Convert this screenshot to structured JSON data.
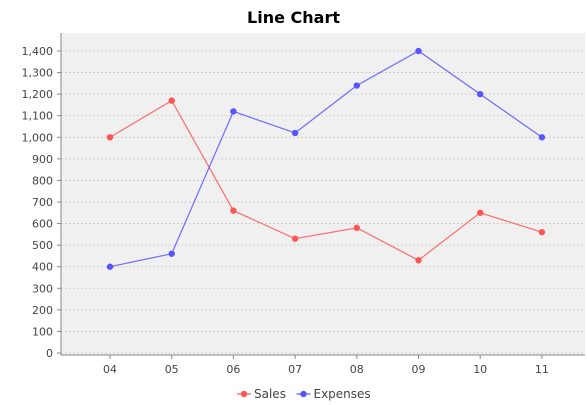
{
  "chart_data": {
    "type": "line",
    "title": "Line Chart",
    "xlabel": "",
    "ylabel": "",
    "categories": [
      "04",
      "05",
      "06",
      "07",
      "08",
      "09",
      "10",
      "11"
    ],
    "ylim": [
      0,
      1400
    ],
    "yticks": [
      0,
      100,
      200,
      300,
      400,
      500,
      600,
      700,
      800,
      900,
      1000,
      1100,
      1200,
      1300,
      1400
    ],
    "ytick_labels": [
      "0",
      "100",
      "200",
      "300",
      "400",
      "500",
      "600",
      "700",
      "800",
      "900",
      "1,000",
      "1,100",
      "1,200",
      "1,300",
      "1,400"
    ],
    "grid": true,
    "legend_position": "bottom",
    "series": [
      {
        "name": "Sales",
        "color": "#ff5555",
        "values": [
          1000,
          1170,
          660,
          530,
          580,
          430,
          650,
          560
        ]
      },
      {
        "name": "Expenses",
        "color": "#5555ff",
        "values": [
          400,
          460,
          1120,
          1020,
          1240,
          1400,
          1200,
          1000
        ]
      }
    ]
  }
}
